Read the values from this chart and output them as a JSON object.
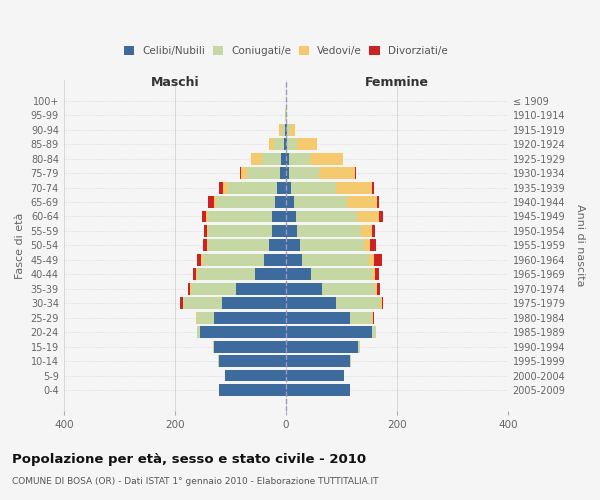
{
  "age_groups": [
    "0-4",
    "5-9",
    "10-14",
    "15-19",
    "20-24",
    "25-29",
    "30-34",
    "35-39",
    "40-44",
    "45-49",
    "50-54",
    "55-59",
    "60-64",
    "65-69",
    "70-74",
    "75-79",
    "80-84",
    "85-89",
    "90-94",
    "95-99",
    "100+"
  ],
  "birth_years": [
    "2005-2009",
    "2000-2004",
    "1995-1999",
    "1990-1994",
    "1985-1989",
    "1980-1984",
    "1975-1979",
    "1970-1974",
    "1965-1969",
    "1960-1964",
    "1955-1959",
    "1950-1954",
    "1945-1949",
    "1940-1944",
    "1935-1939",
    "1930-1934",
    "1925-1929",
    "1920-1924",
    "1915-1919",
    "1910-1914",
    "≤ 1909"
  ],
  "male": {
    "celibi": [
      120,
      110,
      120,
      130,
      155,
      130,
      115,
      90,
      55,
      40,
      30,
      25,
      25,
      20,
      15,
      10,
      8,
      3,
      2,
      0,
      0
    ],
    "coniugati": [
      0,
      0,
      2,
      2,
      5,
      30,
      70,
      80,
      105,
      110,
      110,
      115,
      115,
      105,
      90,
      60,
      35,
      18,
      5,
      1,
      0
    ],
    "vedovi": [
      0,
      0,
      0,
      0,
      0,
      1,
      1,
      2,
      2,
      2,
      2,
      2,
      3,
      5,
      8,
      10,
      20,
      10,
      5,
      1,
      0
    ],
    "divorziati": [
      0,
      0,
      0,
      0,
      0,
      1,
      5,
      5,
      5,
      8,
      8,
      5,
      8,
      10,
      8,
      2,
      0,
      0,
      0,
      0,
      0
    ]
  },
  "female": {
    "nubili": [
      115,
      105,
      115,
      130,
      155,
      115,
      90,
      65,
      45,
      30,
      25,
      20,
      18,
      15,
      10,
      5,
      5,
      3,
      2,
      0,
      0
    ],
    "coniugate": [
      0,
      0,
      2,
      3,
      8,
      40,
      80,
      95,
      110,
      120,
      115,
      115,
      110,
      95,
      80,
      55,
      38,
      18,
      5,
      1,
      0
    ],
    "vedove": [
      0,
      0,
      0,
      0,
      0,
      2,
      3,
      5,
      5,
      8,
      12,
      20,
      40,
      55,
      65,
      65,
      60,
      35,
      10,
      1,
      0
    ],
    "divorziate": [
      0,
      0,
      0,
      0,
      0,
      1,
      3,
      5,
      8,
      15,
      10,
      5,
      8,
      3,
      3,
      2,
      0,
      0,
      0,
      0,
      0
    ]
  },
  "colors": {
    "celibi_nubili": "#3d6b9e",
    "coniugati": "#c5d8a4",
    "vedovi": "#f5c96e",
    "divorziati": "#cc2222"
  },
  "xlim": 400,
  "title": "Popolazione per età, sesso e stato civile - 2010",
  "subtitle": "COMUNE DI BOSA (OR) - Dati ISTAT 1° gennaio 2010 - Elaborazione TUTTITALIA.IT",
  "ylabel_left": "Fasce di età",
  "ylabel_right": "Anni di nascita",
  "xlabel_left": "Maschi",
  "xlabel_right": "Femmine",
  "background_color": "#f5f5f5"
}
